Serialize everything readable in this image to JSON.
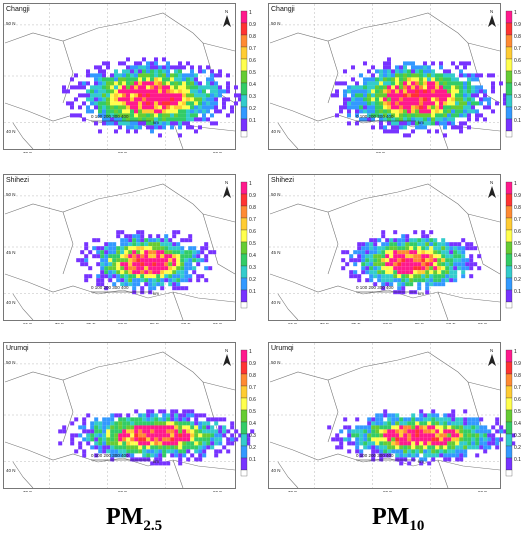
{
  "panels": [
    {
      "id": "changji-pm25",
      "city": "Changji",
      "col": 0,
      "row": 0,
      "lat_labels": [
        "50 N",
        "40 N"
      ],
      "lon_labels": [
        "70 E",
        "80 E",
        "90 E"
      ],
      "scale": "0 100 200 300 400",
      "scale_unit": "km"
    },
    {
      "id": "changji-pm10",
      "city": "Changji",
      "col": 1,
      "row": 0,
      "lat_labels": [
        "50 N",
        "40 N"
      ],
      "lon_labels": [
        "80 E"
      ],
      "scale": "0 100 200 300 400",
      "scale_unit": "km"
    },
    {
      "id": "shihezi-pm25",
      "city": "Shihezi",
      "col": 0,
      "row": 1,
      "lat_labels": [
        "50 N",
        "45 N",
        "40 N"
      ],
      "lon_labels": [
        "65 E",
        "70 E",
        "75 E",
        "80 E",
        "85 E",
        "90 E",
        "95 E"
      ],
      "scale": "0 100 200 300 400",
      "scale_unit": "km"
    },
    {
      "id": "shihezi-pm10",
      "city": "Shihezi",
      "col": 1,
      "row": 1,
      "lat_labels": [
        "50 N",
        "45 N",
        "40 N"
      ],
      "lon_labels": [
        "65 E",
        "70 E",
        "75 E",
        "80 E",
        "85 E",
        "90 E",
        "95 E"
      ],
      "scale": "0 100 200 300 400",
      "scale_unit": "km"
    },
    {
      "id": "urumqi-pm25",
      "city": "Urumqi",
      "col": 0,
      "row": 2,
      "lat_labels": [
        "50 N",
        "40 N"
      ],
      "lon_labels": [
        "70 E",
        "80 E",
        "90 E"
      ],
      "scale": "0 100 200 300 400",
      "scale_unit": "km"
    },
    {
      "id": "urumqi-pm10",
      "city": "Urumqi",
      "col": 1,
      "row": 2,
      "lat_labels": [
        "50 N",
        "40 N"
      ],
      "lon_labels": [
        "70 E",
        "80 E",
        "90 E"
      ],
      "scale": "0 100 200 300 400",
      "scale_unit": "km"
    }
  ],
  "colorbar": {
    "labels": [
      "1",
      "0.9",
      "0.8",
      "0.7",
      "0.6",
      "0.5",
      "0.4",
      "0.3",
      "0.2",
      "0.1"
    ],
    "colors": [
      "#ff1a8c",
      "#ff3333",
      "#ff8a33",
      "#ffcc33",
      "#ffff4d",
      "#66cc33",
      "#33cc66",
      "#33cccc",
      "#3399ff",
      "#7733ff",
      "#ffffff"
    ]
  },
  "north_label": "N",
  "columns": {
    "left": {
      "base": "PM",
      "sub": "2.5"
    },
    "right": {
      "base": "PM",
      "sub": "10"
    }
  }
}
